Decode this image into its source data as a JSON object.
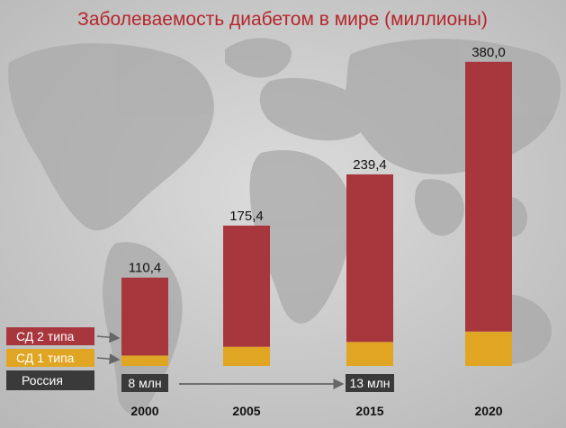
{
  "chart_data": {
    "type": "bar",
    "title": "Заболеваемость диабетом в мире (миллионы)",
    "categories": [
      "2000",
      "2005",
      "2015",
      "2020"
    ],
    "totals": [
      110.4,
      175.4,
      239.4,
      380.0
    ],
    "total_labels": [
      "110,4",
      "175,4",
      "239,4",
      "380,0"
    ],
    "series": [
      {
        "name": "СД 2 типа",
        "values": [
          97.4,
          151.4,
          209.4,
          337.0
        ],
        "color": "#a8373d"
      },
      {
        "name": "СД 1 типа",
        "values": [
          13.0,
          24.0,
          30.0,
          43.0
        ],
        "color": "#e0a523"
      }
    ],
    "russia": {
      "label": "Россия",
      "from_category": "2000",
      "to_category": "2015",
      "from_value": "8 млн",
      "to_value": "13 млн"
    },
    "ylim": [
      0,
      380
    ]
  }
}
